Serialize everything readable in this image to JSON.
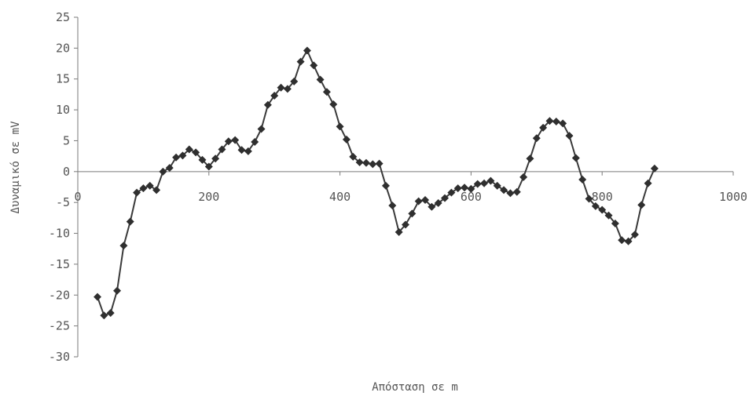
{
  "chart_data": {
    "type": "line",
    "title": "",
    "xlabel": "Απόσταση σε m",
    "ylabel": "Δυναμικό σε mV",
    "xlim": [
      0,
      1000
    ],
    "ylim": [
      -30,
      25
    ],
    "x_ticks": [
      0,
      200,
      400,
      600,
      800,
      1000
    ],
    "x_tick_labels": [
      "0",
      "200",
      "400",
      "600",
      "800",
      "1000"
    ],
    "y_ticks": [
      25,
      20,
      15,
      10,
      5,
      0,
      -5,
      -10,
      -15,
      -20,
      -25,
      -30
    ],
    "y_tick_labels": [
      "25",
      "20",
      "15",
      "10",
      "5",
      "0",
      "-5",
      "-10",
      "-15",
      "-20",
      "-25",
      "-30"
    ],
    "grid": false,
    "legend": "none",
    "marker": "diamond",
    "series": [
      {
        "points": [
          [
            30,
            -20.3
          ],
          [
            40,
            -23.3
          ],
          [
            50,
            -22.9
          ],
          [
            60,
            -19.3
          ],
          [
            70,
            -12
          ],
          [
            80,
            -8.1
          ],
          [
            90,
            -3.4
          ],
          [
            100,
            -2.7
          ],
          [
            110,
            -2.3
          ],
          [
            120,
            -3
          ],
          [
            130,
            0
          ],
          [
            140,
            0.6
          ],
          [
            150,
            2.3
          ],
          [
            160,
            2.6
          ],
          [
            170,
            3.6
          ],
          [
            180,
            3.1
          ],
          [
            190,
            1.9
          ],
          [
            200,
            0.8
          ],
          [
            210,
            2.1
          ],
          [
            220,
            3.6
          ],
          [
            230,
            4.9
          ],
          [
            240,
            5.1
          ],
          [
            250,
            3.5
          ],
          [
            260,
            3.3
          ],
          [
            270,
            4.8
          ],
          [
            280,
            6.9
          ],
          [
            290,
            10.8
          ],
          [
            300,
            12.3
          ],
          [
            310,
            13.6
          ],
          [
            320,
            13.4
          ],
          [
            330,
            14.6
          ],
          [
            340,
            17.8
          ],
          [
            350,
            19.6
          ],
          [
            360,
            17.2
          ],
          [
            370,
            14.9
          ],
          [
            380,
            12.9
          ],
          [
            390,
            10.9
          ],
          [
            400,
            7.3
          ],
          [
            410,
            5.2
          ],
          [
            420,
            2.4
          ],
          [
            430,
            1.5
          ],
          [
            440,
            1.4
          ],
          [
            450,
            1.2
          ],
          [
            460,
            1.3
          ],
          [
            470,
            -2.3
          ],
          [
            480,
            -5.5
          ],
          [
            490,
            -9.8
          ],
          [
            500,
            -8.6
          ],
          [
            510,
            -6.8
          ],
          [
            520,
            -4.8
          ],
          [
            530,
            -4.6
          ],
          [
            540,
            -5.7
          ],
          [
            550,
            -5.1
          ],
          [
            560,
            -4.3
          ],
          [
            570,
            -3.4
          ],
          [
            580,
            -2.7
          ],
          [
            590,
            -2.6
          ],
          [
            600,
            -2.8
          ],
          [
            610,
            -2
          ],
          [
            620,
            -1.9
          ],
          [
            630,
            -1.5
          ],
          [
            640,
            -2.3
          ],
          [
            650,
            -3
          ],
          [
            660,
            -3.5
          ],
          [
            670,
            -3.3
          ],
          [
            680,
            -0.9
          ],
          [
            690,
            2.1
          ],
          [
            700,
            5.4
          ],
          [
            710,
            7.1
          ],
          [
            720,
            8.2
          ],
          [
            730,
            8.1
          ],
          [
            740,
            7.8
          ],
          [
            750,
            5.8
          ],
          [
            760,
            2.2
          ],
          [
            770,
            -1.3
          ],
          [
            780,
            -4.4
          ],
          [
            790,
            -5.6
          ],
          [
            800,
            -6.2
          ],
          [
            810,
            -7.1
          ],
          [
            820,
            -8.4
          ],
          [
            830,
            -11.1
          ],
          [
            840,
            -11.3
          ],
          [
            850,
            -10.2
          ],
          [
            860,
            -5.4
          ],
          [
            870,
            -1.9
          ],
          [
            880,
            0.5
          ]
        ]
      }
    ]
  }
}
